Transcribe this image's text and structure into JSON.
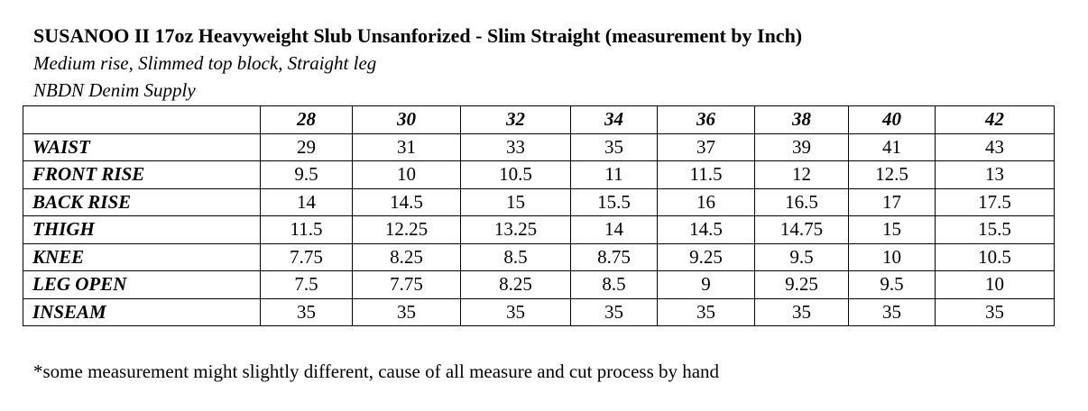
{
  "header": {
    "title": "SUSANOO II 17oz Heavyweight Slub Unsanforized - Slim Straight (measurement by Inch)",
    "subtitle": "Medium rise, Slimmed top block, Straight leg",
    "brand": "NBDN Denim Supply"
  },
  "table": {
    "columns": [
      "28",
      "30",
      "32",
      "34",
      "36",
      "38",
      "40",
      "42"
    ],
    "rows": [
      {
        "label": "WAIST",
        "values": [
          "29",
          "31",
          "33",
          "35",
          "37",
          "39",
          "41",
          "43"
        ]
      },
      {
        "label": "FRONT RISE",
        "values": [
          "9.5",
          "10",
          "10.5",
          "11",
          "11.5",
          "12",
          "12.5",
          "13"
        ]
      },
      {
        "label": "BACK RISE",
        "values": [
          "14",
          "14.5",
          "15",
          "15.5",
          "16",
          "16.5",
          "17",
          "17.5"
        ]
      },
      {
        "label": "THIGH",
        "values": [
          "11.5",
          "12.25",
          "13.25",
          "14",
          "14.5",
          "14.75",
          "15",
          "15.5"
        ]
      },
      {
        "label": "KNEE",
        "values": [
          "7.75",
          "8.25",
          "8.5",
          "8.75",
          "9.25",
          "9.5",
          "10",
          "10.5"
        ]
      },
      {
        "label": "LEG OPEN",
        "values": [
          "7.5",
          "7.75",
          "8.25",
          "8.5",
          "9",
          "9.25",
          "9.5",
          "10"
        ]
      },
      {
        "label": "INSEAM",
        "values": [
          "35",
          "35",
          "35",
          "35",
          "35",
          "35",
          "35",
          "35"
        ]
      }
    ]
  },
  "footnote": "*some measurement might slightly different, cause of all measure and cut process by hand"
}
